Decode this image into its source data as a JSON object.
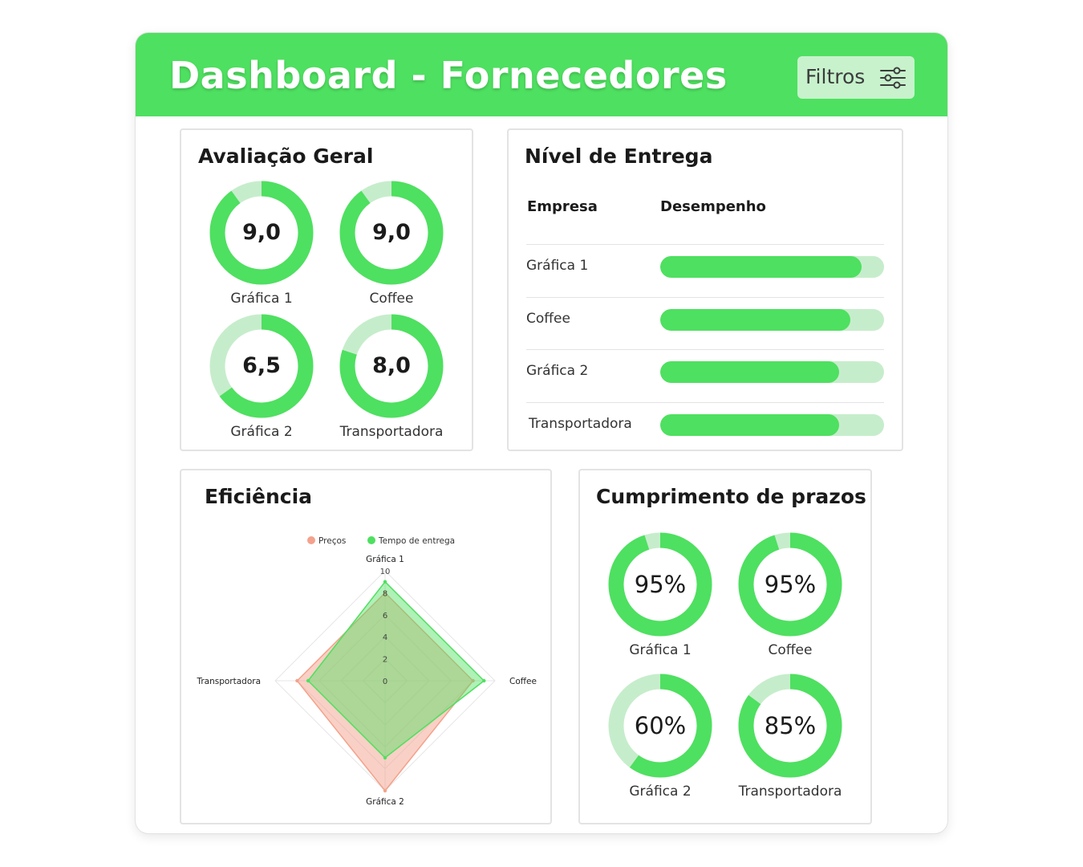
{
  "header": {
    "title": "Dashboard - Fornecedores",
    "filters_label": "Filtros",
    "filters_icon": "sliders-icon"
  },
  "colors": {
    "brand_green": "#4ee060",
    "light_green": "#c6edcb",
    "salmon": "#f4a28c"
  },
  "avaliacao": {
    "title": "Avaliação Geral",
    "max": 10,
    "items": [
      {
        "label": "Gráfica 1",
        "value_text": "9,0",
        "value": 9.0
      },
      {
        "label": "Coffee",
        "value_text": "9,0",
        "value": 9.0
      },
      {
        "label": "Gráfica 2",
        "value_text": "6,5",
        "value": 6.5
      },
      {
        "label": "Transportadora",
        "value_text": "8,0",
        "value": 8.0
      }
    ]
  },
  "entrega": {
    "title": "Nível de Entrega",
    "col_company": "Empresa",
    "col_performance": "Desempenho",
    "rows": [
      {
        "name": "Gráfica 1",
        "performance": 0.9
      },
      {
        "name": "Coffee",
        "performance": 0.85
      },
      {
        "name": "Gráfica 2",
        "performance": 0.8
      },
      {
        "name": "Transportadora",
        "performance": 0.8
      }
    ]
  },
  "eficiencia": {
    "title": "Eficiência",
    "chart_data": {
      "type": "radar",
      "axes": [
        "Gráfica 1",
        "Coffee",
        "Gráfica 2",
        "Transportadora"
      ],
      "range": [
        0,
        10
      ],
      "ticks": [
        "0",
        "2",
        "4",
        "6",
        "8",
        "10"
      ],
      "legend_position": "top",
      "series": [
        {
          "name": "Preços",
          "color": "#f4a28c",
          "values": [
            8,
            8,
            10,
            8
          ]
        },
        {
          "name": "Tempo de entrega",
          "color": "#4ee060",
          "values": [
            9,
            9,
            7,
            7
          ]
        }
      ]
    }
  },
  "prazos": {
    "title": "Cumprimento de prazos",
    "items": [
      {
        "label": "Gráfica 1",
        "value_text": "95%",
        "value": 0.95
      },
      {
        "label": "Coffee",
        "value_text": "95%",
        "value": 0.95
      },
      {
        "label": "Gráfica 2",
        "value_text": "60%",
        "value": 0.6
      },
      {
        "label": "Transportadora",
        "value_text": "85%",
        "value": 0.85
      }
    ]
  }
}
